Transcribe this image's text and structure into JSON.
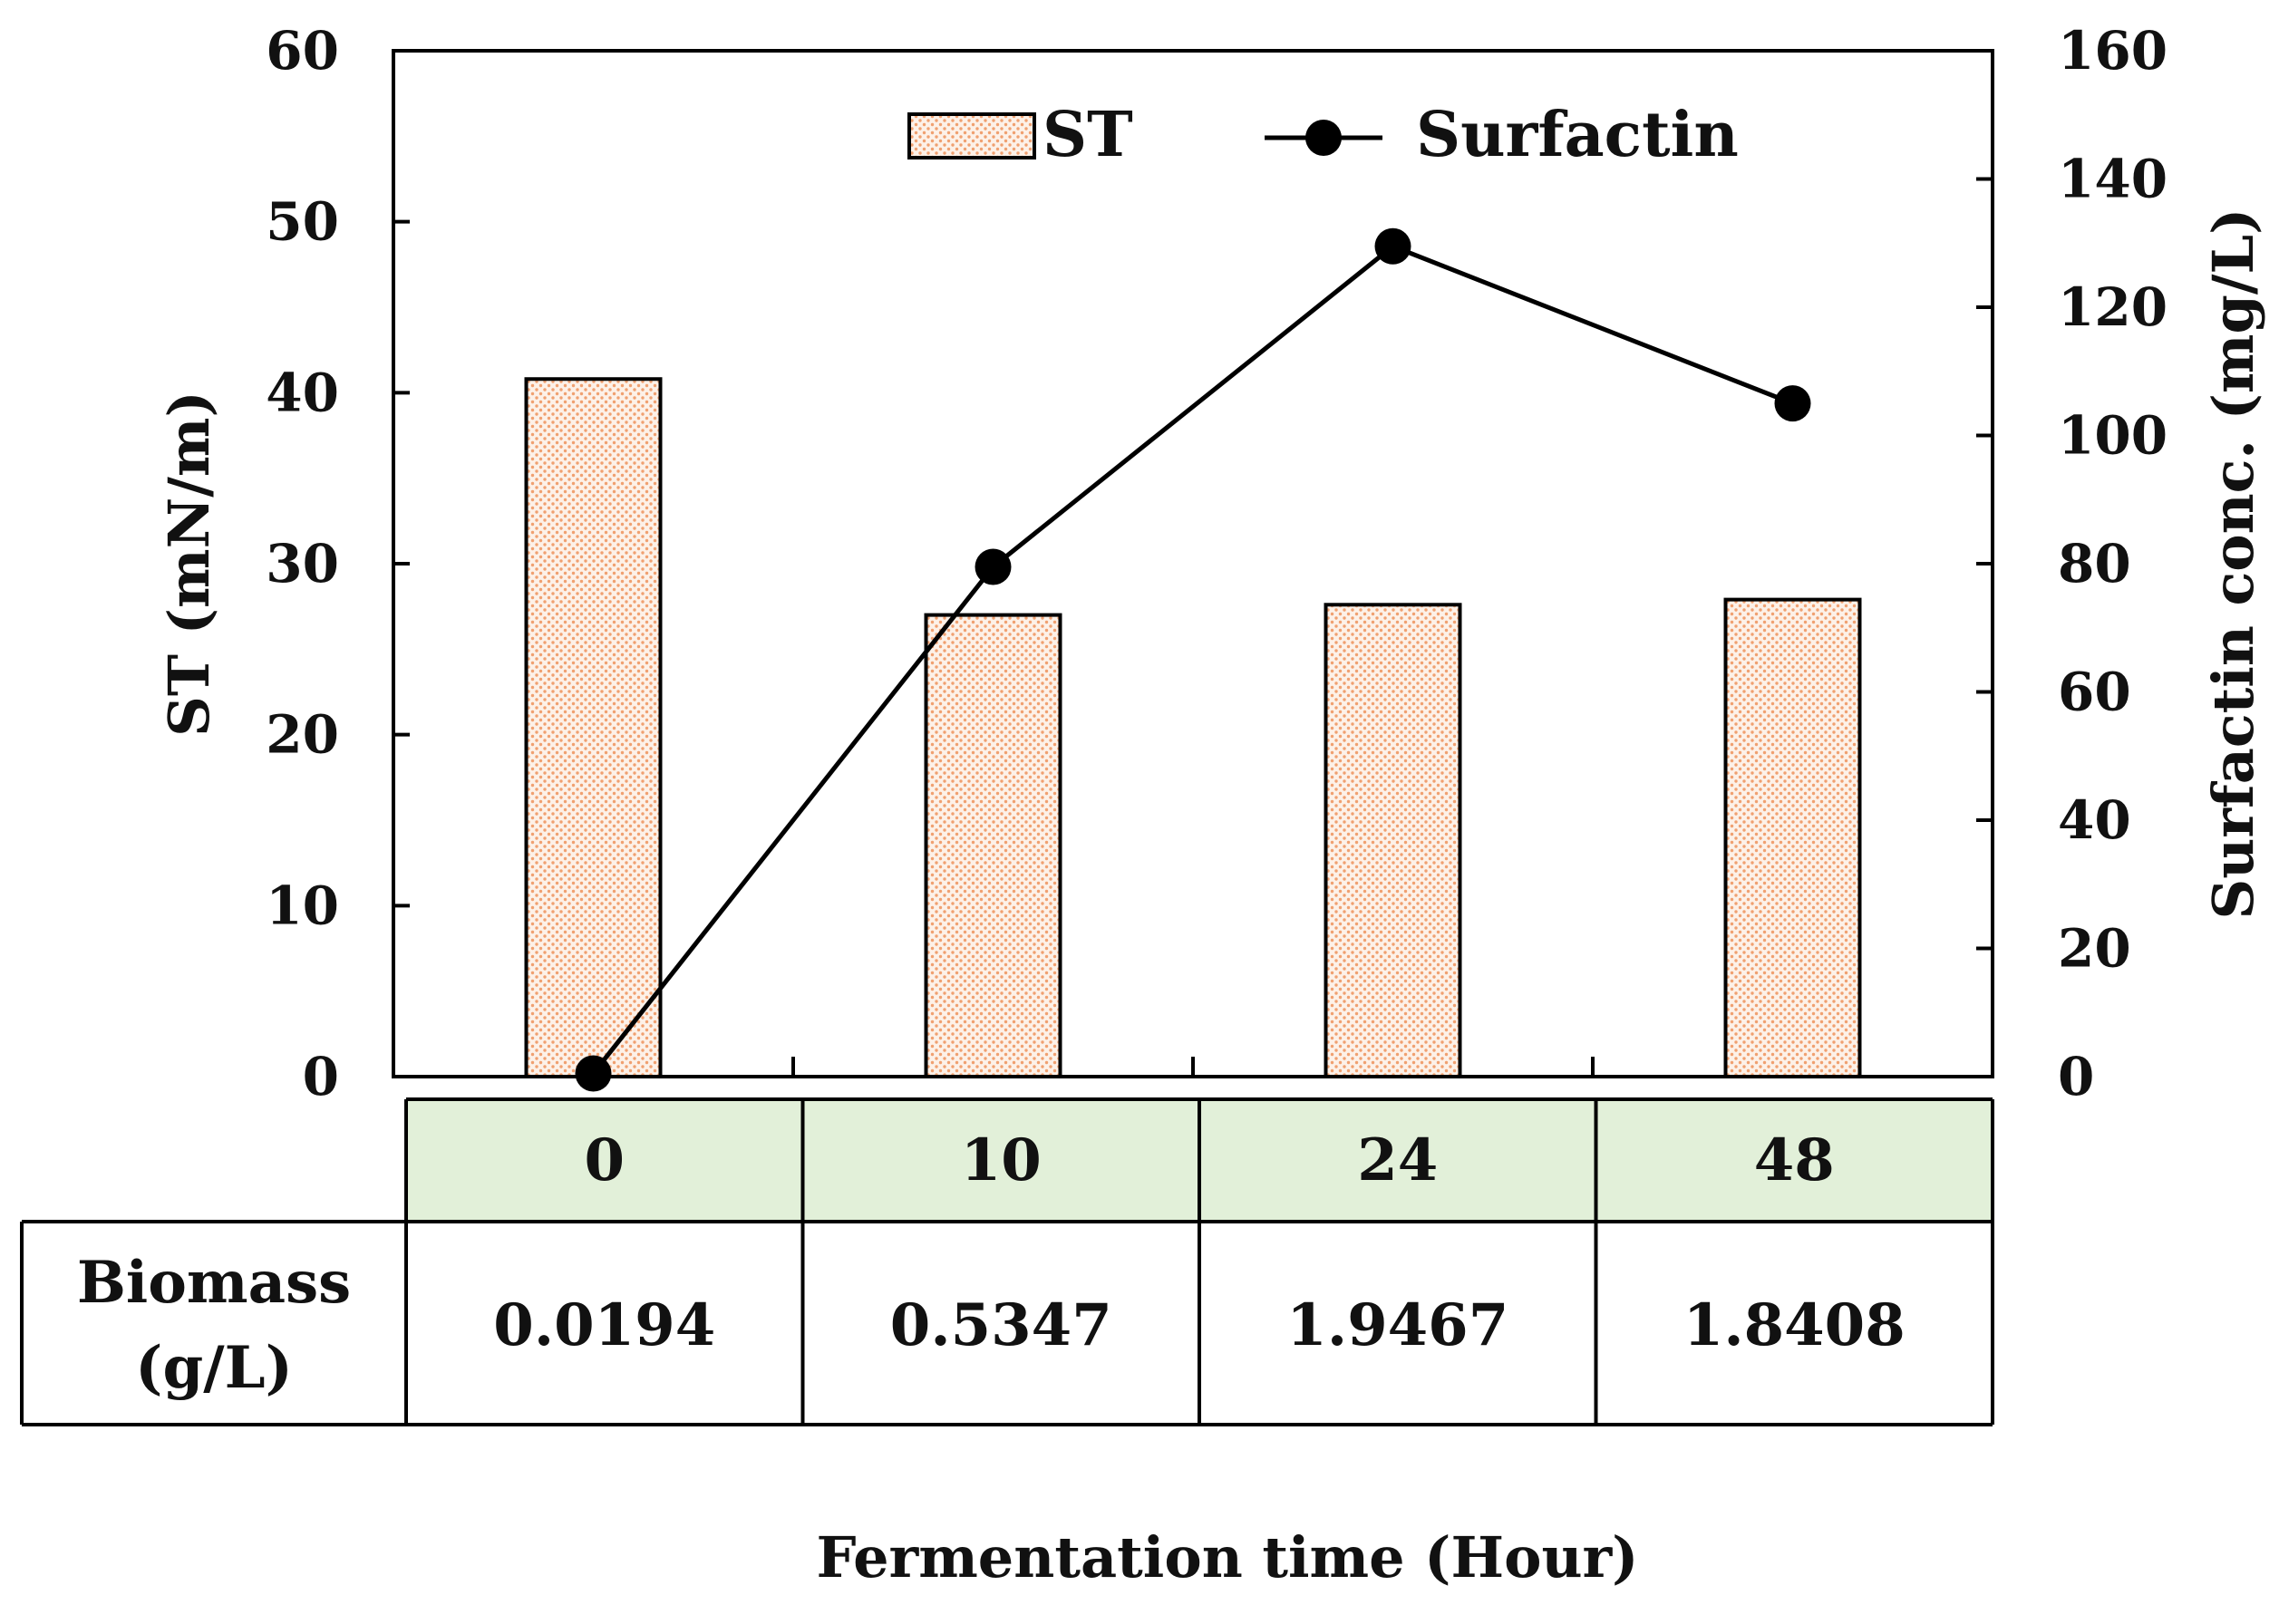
{
  "chart_data": {
    "type": "bar+line",
    "categories": [
      "0",
      "10",
      "24",
      "48"
    ],
    "xlabel": "Fermentation time (Hour)",
    "y_left": {
      "label": "ST (mN/m)",
      "lim": [
        0,
        60
      ],
      "ticks": [
        "0",
        "10",
        "20",
        "30",
        "40",
        "50",
        "60"
      ]
    },
    "y_right": {
      "label": "Surfactin conc. (mg/L)",
      "lim": [
        0,
        160
      ],
      "ticks": [
        "0",
        "20",
        "40",
        "60",
        "80",
        "100",
        "120",
        "140",
        "160"
      ]
    },
    "series": [
      {
        "name": "ST",
        "kind": "bar",
        "axis": "left",
        "values": [
          40.8,
          27.0,
          27.6,
          27.9
        ],
        "color": "#f4b183"
      },
      {
        "name": "Surfactin",
        "kind": "line",
        "axis": "right",
        "values": [
          0.5,
          79.5,
          129.5,
          105.0
        ],
        "color": "#000000"
      }
    ],
    "legend": {
      "position": "top-center",
      "entries": [
        "ST",
        "Surfactin"
      ]
    },
    "table": {
      "row_label_line1": "Biomass",
      "row_label_line2": "(g/L)",
      "values": [
        "0.0194",
        "0.5347",
        "1.9467",
        "1.8408"
      ],
      "header_color": "#e2f0d9"
    }
  }
}
